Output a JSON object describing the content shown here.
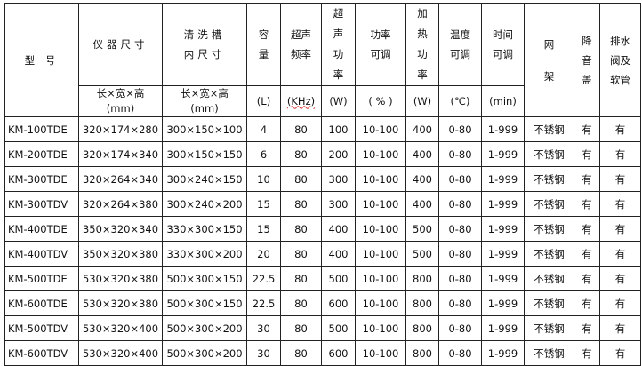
{
  "header": {
    "model": "型 号",
    "device_size": "仪器尺寸",
    "tank_size": [
      "清洗槽",
      "内尺寸"
    ],
    "capacity": [
      "容",
      "量"
    ],
    "frequency": [
      "超声",
      "频率"
    ],
    "ultrasonic_power": [
      "超",
      "声",
      "功",
      "率"
    ],
    "power_adjust": [
      "功率",
      "可调"
    ],
    "heating_power": [
      "加",
      "热",
      "功",
      "率"
    ],
    "temp_adjust": [
      "温度",
      "可调"
    ],
    "time_adjust": [
      "时间",
      "可调"
    ],
    "basket": [
      "网",
      "架"
    ],
    "lid": [
      "降",
      "音",
      "盖"
    ],
    "drain": [
      "排水",
      "阀及",
      "软管"
    ]
  },
  "units": {
    "device_size": [
      "长×宽×高",
      "(mm)"
    ],
    "tank_size": [
      "长×宽×高",
      "(mm)"
    ],
    "capacity": "(L)",
    "frequency": "(KHz)",
    "ultrasonic_power": "(W)",
    "power_adjust": "( % )",
    "heating_power": "(W)",
    "temp_adjust": "(℃)",
    "time_adjust": "(min)"
  },
  "rows": [
    [
      "KM-100TDE",
      "320×174×280",
      "300×150×100",
      "4",
      "80",
      "100",
      "10-100",
      "400",
      "0-80",
      "1-999",
      "不锈钢",
      "有",
      "有"
    ],
    [
      "KM-200TDE",
      "320×174×340",
      "300×150×150",
      "6",
      "80",
      "200",
      "10-100",
      "400",
      "0-80",
      "1-999",
      "不锈钢",
      "有",
      "有"
    ],
    [
      "KM-300TDE",
      "320×264×340",
      "300×240×150",
      "10",
      "80",
      "300",
      "10-100",
      "400",
      "0-80",
      "1-999",
      "不锈钢",
      "有",
      "有"
    ],
    [
      "KM-300TDV",
      "320×264×380",
      "300×240×200",
      "15",
      "80",
      "300",
      "10-100",
      "400",
      "0-80",
      "1-999",
      "不锈钢",
      "有",
      "有"
    ],
    [
      "KM-400TDE",
      "350×320×340",
      "330×300×150",
      "15",
      "80",
      "400",
      "10-100",
      "500",
      "0-80",
      "1-999",
      "不锈钢",
      "有",
      "有"
    ],
    [
      "KM-400TDV",
      "350×320×380",
      "330×300×200",
      "20",
      "80",
      "400",
      "10-100",
      "500",
      "0-80",
      "1-999",
      "不锈钢",
      "有",
      "有"
    ],
    [
      "KM-500TDE",
      "530×320×380",
      "500×300×150",
      "22.5",
      "80",
      "500",
      "10-100",
      "800",
      "0-80",
      "1-999",
      "不锈钢",
      "有",
      "有"
    ],
    [
      "KM-600TDE",
      "530×320×380",
      "500×300×150",
      "22.5",
      "80",
      "600",
      "10-100",
      "800",
      "0-80",
      "1-999",
      "不锈钢",
      "有",
      "有"
    ],
    [
      "KM-500TDV",
      "530×320×400",
      "500×300×200",
      "30",
      "80",
      "500",
      "10-100",
      "800",
      "0-80",
      "1-999",
      "不锈钢",
      "有",
      "有"
    ],
    [
      "KM-600TDV",
      "530×320×400",
      "500×300×200",
      "30",
      "80",
      "600",
      "10-100",
      "800",
      "0-80",
      "1-999",
      "不锈钢",
      "有",
      "有"
    ]
  ]
}
